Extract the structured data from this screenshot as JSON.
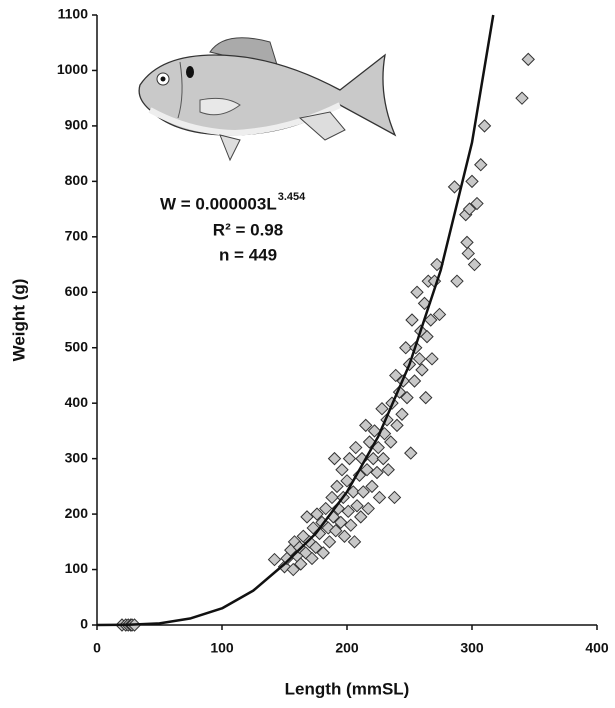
{
  "chart_data": {
    "type": "scatter",
    "x_label": "Length (mmSL)",
    "y_label": "Weight (g)",
    "xlim": [
      0,
      400
    ],
    "xticks": [
      0,
      100,
      200,
      300,
      400
    ],
    "ylim": [
      0,
      1100
    ],
    "yticks": [
      0,
      100,
      200,
      300,
      400,
      500,
      600,
      700,
      800,
      900,
      1000,
      1100
    ],
    "grid": false,
    "marker_color": "#c8c8c8",
    "line_color": "#111111",
    "annotations": {
      "equation": "W = 0.000003L",
      "equation_exponent": "3.454",
      "r_squared": "R² = 0.98",
      "n": "n = 449"
    },
    "x": [
      20,
      23,
      25,
      27,
      28,
      30,
      142,
      150,
      152,
      155,
      157,
      158,
      160,
      162,
      163,
      165,
      167,
      168,
      170,
      172,
      173,
      175,
      176,
      178,
      180,
      181,
      183,
      185,
      186,
      188,
      189,
      190,
      191,
      192,
      193,
      195,
      196,
      197,
      198,
      200,
      201,
      202,
      203,
      205,
      206,
      207,
      208,
      210,
      211,
      212,
      213,
      215,
      216,
      217,
      218,
      220,
      221,
      222,
      224,
      225,
      226,
      228,
      229,
      230,
      232,
      233,
      235,
      236,
      238,
      239,
      240,
      242,
      244,
      245,
      247,
      248,
      250,
      251,
      252,
      254,
      255,
      256,
      258,
      259,
      260,
      262,
      263,
      264,
      265,
      267,
      268,
      270,
      272,
      274,
      286,
      288,
      295,
      296,
      297,
      298,
      300,
      302,
      304,
      307,
      310,
      340,
      345
    ],
    "values": [
      0,
      0,
      0,
      0,
      0,
      0,
      118,
      105,
      120,
      135,
      100,
      150,
      125,
      140,
      110,
      160,
      130,
      195,
      150,
      120,
      175,
      140,
      200,
      165,
      185,
      130,
      210,
      175,
      150,
      230,
      195,
      300,
      170,
      250,
      210,
      185,
      280,
      230,
      160,
      260,
      205,
      300,
      180,
      240,
      150,
      320,
      215,
      270,
      195,
      300,
      240,
      360,
      280,
      210,
      330,
      250,
      300,
      350,
      275,
      320,
      230,
      390,
      300,
      345,
      370,
      280,
      330,
      400,
      230,
      450,
      360,
      420,
      380,
      440,
      500,
      410,
      470,
      310,
      550,
      440,
      500,
      600,
      480,
      530,
      460,
      580,
      410,
      520,
      620,
      550,
      480,
      620,
      650,
      560,
      790,
      620,
      740,
      690,
      670,
      750,
      800,
      650,
      760,
      830,
      900,
      950,
      1020
    ],
    "fit": {
      "x": [
        0,
        25,
        50,
        75,
        100,
        125,
        150,
        175,
        200,
        225,
        250,
        275,
        300,
        317
      ],
      "y": [
        0,
        0.5,
        3,
        12,
        30,
        62,
        110,
        165,
        240,
        340,
        470,
        640,
        870,
        1100
      ]
    }
  }
}
